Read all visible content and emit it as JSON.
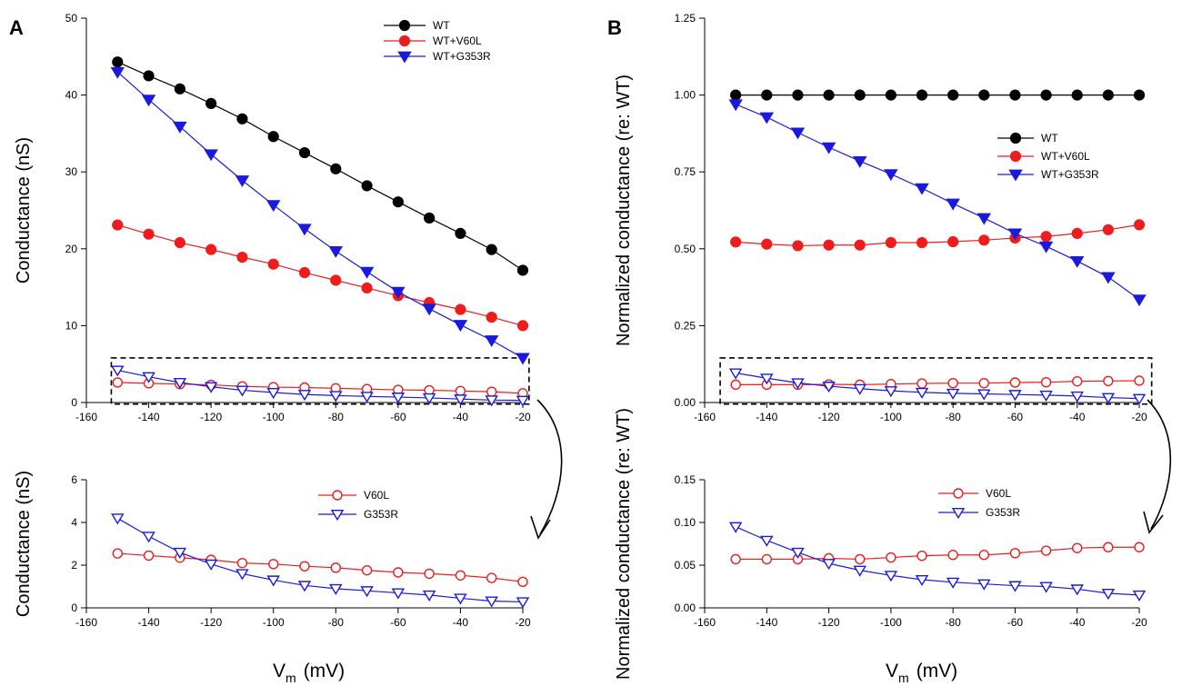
{
  "panel_labels": [
    "A",
    "B"
  ],
  "x_axis_label": {
    "main": "V",
    "sub": "m",
    "unit": "(mV)"
  },
  "chart_data": [
    {
      "id": "A-top",
      "panel": "A",
      "type": "line",
      "ylabel": "Conductance (nS)",
      "xlabel": "",
      "xlim": [
        -160,
        -20
      ],
      "ylim": [
        0,
        50
      ],
      "xticks": [
        -160,
        -140,
        -120,
        -100,
        -80,
        -60,
        -40,
        -20
      ],
      "yticks": [
        0,
        10,
        20,
        30,
        40,
        50
      ],
      "ytick_labels": [
        "0",
        "10",
        "20",
        "30",
        "40",
        "50"
      ],
      "legend": "top-right",
      "grid": false,
      "x": [
        -150,
        -140,
        -130,
        -120,
        -110,
        -100,
        -90,
        -80,
        -70,
        -60,
        -50,
        -40,
        -30,
        -20
      ],
      "series": [
        {
          "name": "WT",
          "color": "#000000",
          "marker": "circle-filled",
          "values": [
            44.3,
            42.5,
            40.8,
            38.9,
            36.9,
            34.6,
            32.5,
            30.4,
            28.2,
            26.1,
            24.0,
            22.0,
            19.9,
            17.2
          ]
        },
        {
          "name": "WT+V60L",
          "color": "#ee1c1c",
          "marker": "circle-filled",
          "values": [
            23.1,
            21.9,
            20.8,
            19.9,
            18.9,
            18.0,
            16.9,
            15.9,
            14.9,
            13.9,
            13.0,
            12.1,
            11.1,
            10.0
          ]
        },
        {
          "name": "WT+G353R",
          "color": "#1a1adc",
          "marker": "tri-filled",
          "values": [
            43.0,
            39.4,
            35.9,
            32.3,
            28.9,
            25.7,
            22.6,
            19.7,
            17.0,
            14.4,
            12.2,
            10.1,
            8.1,
            5.8
          ]
        },
        {
          "name": "V60L",
          "color": "#ee1c1c",
          "marker": "circle-open",
          "legend": false,
          "values": [
            2.6,
            2.5,
            2.4,
            2.3,
            2.1,
            2.0,
            1.95,
            1.85,
            1.75,
            1.65,
            1.6,
            1.5,
            1.4,
            1.2
          ]
        },
        {
          "name": "G353R",
          "color": "#1a1adc",
          "marker": "tri-open",
          "legend": false,
          "values": [
            4.2,
            3.35,
            2.6,
            2.05,
            1.6,
            1.3,
            1.05,
            0.9,
            0.8,
            0.7,
            0.6,
            0.45,
            0.32,
            0.28
          ]
        }
      ],
      "zoom_box": {
        "xlim": [
          -152,
          -18
        ],
        "ylim": [
          -0.2,
          5.8
        ]
      }
    },
    {
      "id": "A-bottom",
      "panel": "A",
      "type": "line",
      "ylabel": "Conductance (nS)",
      "xlabel": "V_m (mV)",
      "xlim": [
        -160,
        -20
      ],
      "ylim": [
        0,
        6
      ],
      "xticks": [
        -160,
        -140,
        -120,
        -100,
        -80,
        -60,
        -40,
        -20
      ],
      "yticks": [
        0,
        2,
        4,
        6
      ],
      "ytick_labels": [
        "0",
        "2",
        "4",
        "6"
      ],
      "legend": "top-center",
      "grid": false,
      "x": [
        -150,
        -140,
        -130,
        -120,
        -110,
        -100,
        -90,
        -80,
        -70,
        -60,
        -50,
        -40,
        -30,
        -20
      ],
      "series": [
        {
          "name": "V60L",
          "color": "#ee1c1c",
          "marker": "circle-open",
          "values": [
            2.55,
            2.45,
            2.35,
            2.25,
            2.1,
            2.05,
            1.95,
            1.88,
            1.76,
            1.66,
            1.6,
            1.52,
            1.4,
            1.22
          ]
        },
        {
          "name": "G353R",
          "color": "#1a1adc",
          "marker": "tri-open",
          "values": [
            4.2,
            3.35,
            2.6,
            2.05,
            1.6,
            1.3,
            1.05,
            0.9,
            0.8,
            0.7,
            0.6,
            0.45,
            0.32,
            0.28
          ]
        }
      ]
    },
    {
      "id": "B-top",
      "panel": "B",
      "type": "line",
      "ylabel": "Normalized conductance (re: WT)",
      "xlabel": "",
      "xlim": [
        -160,
        -20
      ],
      "ylim": [
        0,
        1.25
      ],
      "xticks": [
        -160,
        -140,
        -120,
        -100,
        -80,
        -60,
        -40,
        -20
      ],
      "yticks": [
        0,
        0.25,
        0.5,
        0.75,
        1.0,
        1.25
      ],
      "ytick_labels": [
        "0.00",
        "0.25",
        "0.50",
        "0.75",
        "1.00",
        "1.25"
      ],
      "legend": "right",
      "grid": false,
      "x": [
        -150,
        -140,
        -130,
        -120,
        -110,
        -100,
        -90,
        -80,
        -70,
        -60,
        -50,
        -40,
        -30,
        -20
      ],
      "series": [
        {
          "name": "WT",
          "color": "#000000",
          "marker": "circle-filled",
          "values": [
            1.0,
            1.0,
            1.0,
            1.0,
            1.0,
            1.0,
            1.0,
            1.0,
            1.0,
            1.0,
            1.0,
            1.0,
            1.0,
            1.0
          ]
        },
        {
          "name": "WT+V60L",
          "color": "#ee1c1c",
          "marker": "circle-filled",
          "values": [
            0.522,
            0.515,
            0.51,
            0.512,
            0.512,
            0.52,
            0.52,
            0.523,
            0.528,
            0.535,
            0.54,
            0.55,
            0.562,
            0.578
          ]
        },
        {
          "name": "WT+G353R",
          "color": "#1a1adc",
          "marker": "tri-filled",
          "values": [
            0.97,
            0.928,
            0.878,
            0.83,
            0.785,
            0.743,
            0.697,
            0.647,
            0.6,
            0.55,
            0.508,
            0.46,
            0.408,
            0.335
          ]
        },
        {
          "name": "V60L",
          "color": "#ee1c1c",
          "marker": "circle-open",
          "legend": false,
          "values": [
            0.058,
            0.058,
            0.058,
            0.059,
            0.058,
            0.06,
            0.062,
            0.063,
            0.063,
            0.065,
            0.066,
            0.069,
            0.07,
            0.071
          ]
        },
        {
          "name": "G353R",
          "color": "#1a1adc",
          "marker": "tri-open",
          "legend": false,
          "values": [
            0.096,
            0.079,
            0.064,
            0.053,
            0.045,
            0.038,
            0.033,
            0.03,
            0.028,
            0.026,
            0.024,
            0.021,
            0.016,
            0.013
          ]
        }
      ],
      "zoom_box": {
        "xlim": [
          -155,
          -16
        ],
        "ylim": [
          -0.005,
          0.145
        ]
      }
    },
    {
      "id": "B-bottom",
      "panel": "B",
      "type": "line",
      "ylabel": "Normalized conductance (re: WT)",
      "xlabel": "V_m (mV)",
      "xlim": [
        -160,
        -20
      ],
      "ylim": [
        0,
        0.15
      ],
      "xticks": [
        -160,
        -140,
        -120,
        -100,
        -80,
        -60,
        -40,
        -20
      ],
      "yticks": [
        0,
        0.05,
        0.1,
        0.15
      ],
      "ytick_labels": [
        "0.00",
        "0.05",
        "0.10",
        "0.15"
      ],
      "legend": "top-center",
      "grid": false,
      "x": [
        -150,
        -140,
        -130,
        -120,
        -110,
        -100,
        -90,
        -80,
        -70,
        -60,
        -50,
        -40,
        -30,
        -20
      ],
      "series": [
        {
          "name": "V60L",
          "color": "#ee1c1c",
          "marker": "circle-open",
          "values": [
            0.057,
            0.057,
            0.057,
            0.058,
            0.057,
            0.059,
            0.061,
            0.062,
            0.062,
            0.064,
            0.067,
            0.07,
            0.071,
            0.071
          ]
        },
        {
          "name": "G353R",
          "color": "#1a1adc",
          "marker": "tri-open",
          "values": [
            0.095,
            0.079,
            0.065,
            0.052,
            0.044,
            0.038,
            0.033,
            0.03,
            0.028,
            0.026,
            0.025,
            0.022,
            0.017,
            0.015
          ]
        }
      ]
    }
  ]
}
